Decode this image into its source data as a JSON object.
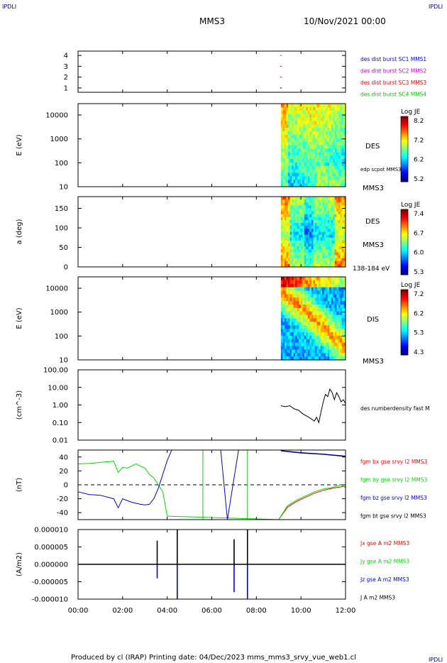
{
  "corner_labels": {
    "top_left": "IPDLI",
    "top_right": "IPDLI",
    "bottom_right": "IPDLI"
  },
  "header": {
    "spacecraft": "MMS3",
    "date": "10/Nov/2021 00:00"
  },
  "footer": {
    "text": "Produced by cl (IRAP)   Printing date: 04/Dec/2023   mms_mms3_srvy_vue_web1.cl"
  },
  "colors": {
    "mms1": "#0000ff",
    "mms2": "#cc00cc",
    "mms3": "#ff0000",
    "mms4": "#00cc00",
    "bx": "#ff0000",
    "by": "#00dd00",
    "bz": "#0000cc",
    "bt": "#000000"
  },
  "time_axis": {
    "ticks": [
      "00:00",
      "02:00",
      "04:00",
      "06:00",
      "08:00",
      "10:00",
      "12:00"
    ],
    "range_hours": [
      0,
      12
    ]
  },
  "chart_data": [
    {
      "id": "burst",
      "type": "scatter",
      "ylabel": "",
      "yticks": [
        "1",
        "2",
        "3",
        "4"
      ],
      "ylim": [
        0.6,
        4.4
      ],
      "series": [
        {
          "name": "des dist burst SC1 MMS1",
          "color": "#0000ff",
          "x": [
            9.1
          ],
          "y": [
            1
          ]
        },
        {
          "name": "des dist burst SC2 MMS2",
          "color": "#cc00cc",
          "x": [
            9.1
          ],
          "y": [
            2
          ]
        },
        {
          "name": "des dist burst SC3 MMS3",
          "color": "#ff0000",
          "x": [
            9.1
          ],
          "y": [
            3
          ]
        },
        {
          "name": "des dist burst SC4 MMS4",
          "color": "#00cc00",
          "x": [
            9.1
          ],
          "y": [
            4
          ]
        }
      ]
    },
    {
      "id": "des_energy",
      "type": "heatmap",
      "ylabel": "E (eV)",
      "yticks": [
        "10",
        "100",
        "1000",
        "10000"
      ],
      "ylog": true,
      "ylim": [
        10,
        30000
      ],
      "x_start_hours": 9.1,
      "labels": [
        "DES",
        "edp scpot MMS3",
        "MMS3"
      ],
      "colorbar": {
        "title": "Log JE",
        "ticks": [
          "8.2",
          "7.2",
          "6.2",
          "5.2"
        ],
        "range": [
          5.2,
          8.2
        ]
      }
    },
    {
      "id": "des_pitch",
      "type": "heatmap",
      "ylabel": "a (deg)",
      "yticks": [
        "0",
        "50",
        "100",
        "150"
      ],
      "ylim": [
        0,
        180
      ],
      "x_start_hours": 9.1,
      "labels": [
        "DES",
        "MMS3",
        "138-184 eV"
      ],
      "colorbar": {
        "title": "Log JE",
        "ticks": [
          "7.4",
          "6.7",
          "6.0",
          "5.3"
        ],
        "range": [
          5.3,
          7.4
        ]
      }
    },
    {
      "id": "dis_energy",
      "type": "heatmap",
      "ylabel": "E (eV)",
      "yticks": [
        "10",
        "100",
        "1000",
        "10000"
      ],
      "ylog": true,
      "ylim": [
        10,
        30000
      ],
      "x_start_hours": 9.1,
      "labels": [
        "DIS",
        "MMS3"
      ],
      "colorbar": {
        "title": "Log JE",
        "ticks": [
          "7.2",
          "6.2",
          "5.3",
          "4.3"
        ],
        "range": [
          4.3,
          7.2
        ]
      }
    },
    {
      "id": "density",
      "type": "line",
      "ylabel": "(cm^-3)",
      "yticks": [
        "0.01",
        "0.10",
        "1.00",
        "10.00",
        "100.00"
      ],
      "ylog": true,
      "ylim": [
        0.01,
        100
      ],
      "series": [
        {
          "name": "des numberdensity fast M",
          "color": "#000000",
          "x": [
            9.1,
            9.3,
            9.5,
            9.7,
            9.9,
            10.1,
            10.3,
            10.5,
            10.6,
            10.7,
            10.8,
            10.9,
            11.0,
            11.1,
            11.2,
            11.3,
            11.4,
            11.5,
            11.6,
            11.7,
            11.8,
            11.9,
            12.0
          ],
          "y": [
            0.9,
            0.8,
            0.9,
            0.6,
            0.5,
            0.3,
            0.22,
            0.15,
            0.12,
            0.2,
            0.1,
            0.4,
            1.5,
            4.0,
            3.0,
            8.0,
            5.0,
            2.0,
            5.0,
            3.0,
            1.5,
            2.0,
            1.2
          ]
        }
      ]
    },
    {
      "id": "bfield",
      "type": "line",
      "ylabel": "(nT)",
      "yticks": [
        "-40",
        "-20",
        "0",
        "20",
        "40"
      ],
      "ylim": [
        -50,
        50
      ],
      "series": [
        {
          "name": "fgm bx gse srvy l2 MMS3",
          "color": "#ff0000",
          "x": [
            9.0,
            9.4,
            9.8,
            10.2,
            10.6,
            11.0,
            11.4,
            11.8,
            12.0
          ],
          "y": [
            -50,
            -32,
            -24,
            -18,
            -12,
            -8,
            -5,
            -3,
            -2
          ]
        },
        {
          "name": "fgm by gse srvy l2 MMS3",
          "color": "#00dd00",
          "x": [
            0,
            0.6,
            1.2,
            1.6,
            1.8,
            2.0,
            2.2,
            2.6,
            3.0,
            3.2,
            3.4,
            3.6,
            3.8,
            4.0,
            9.0,
            9.4,
            9.8,
            10.2,
            10.6,
            11.0,
            11.4,
            11.8,
            12.0
          ],
          "y": [
            30,
            31,
            33,
            34,
            18,
            25,
            24,
            30,
            24,
            15,
            10,
            0,
            -10,
            -45,
            -50,
            -30,
            -22,
            -16,
            -10,
            -6,
            -4,
            0,
            -4
          ]
        },
        {
          "name": "fgm bz gse srvy l2 MMS3",
          "color": "#0000cc",
          "x": [
            0,
            0.5,
            1.0,
            1.6,
            1.8,
            2.0,
            2.4,
            2.8,
            3.0,
            3.2,
            3.4,
            3.6,
            3.8,
            4.0,
            4.2
          ],
          "y": [
            -10,
            -14,
            -15,
            -20,
            -33,
            -20,
            -25,
            -28,
            -29,
            -28,
            -20,
            -5,
            15,
            35,
            50
          ]
        },
        {
          "name": "fgm bt gse srvy l2 MMS3",
          "color": "#000000",
          "x": [],
          "y": []
        }
      ]
    },
    {
      "id": "current",
      "type": "line",
      "ylabel": "(A/m2)",
      "yticks": [
        "-0.000010",
        "-0.000005",
        "0.000000",
        "0.000005",
        "0.000010"
      ],
      "ylim": [
        -1e-05,
        1e-05
      ],
      "series": [
        {
          "name": "Jx gse A m2 MMS3",
          "color": "#ff0000",
          "x": [],
          "y": []
        },
        {
          "name": "Jy gse A m2 MMS3",
          "color": "#00dd00",
          "x": [],
          "y": []
        },
        {
          "name": "Jz gse A m2 MMS3",
          "color": "#0000cc",
          "x": [
            3.5,
            3.55,
            4.45,
            6.9,
            7.0,
            7.6
          ],
          "y": [
            0,
            -4e-06,
            -1e-05,
            0,
            -8e-06,
            -1e-05
          ]
        },
        {
          "name": "J A m2 MMS3",
          "color": "#000000",
          "x": [
            3.5,
            3.55,
            4.45,
            6.9,
            7.0,
            7.6
          ],
          "y": [
            0,
            6.8e-06,
            1e-05,
            0,
            7.2e-06,
            1e-05
          ]
        }
      ]
    }
  ]
}
